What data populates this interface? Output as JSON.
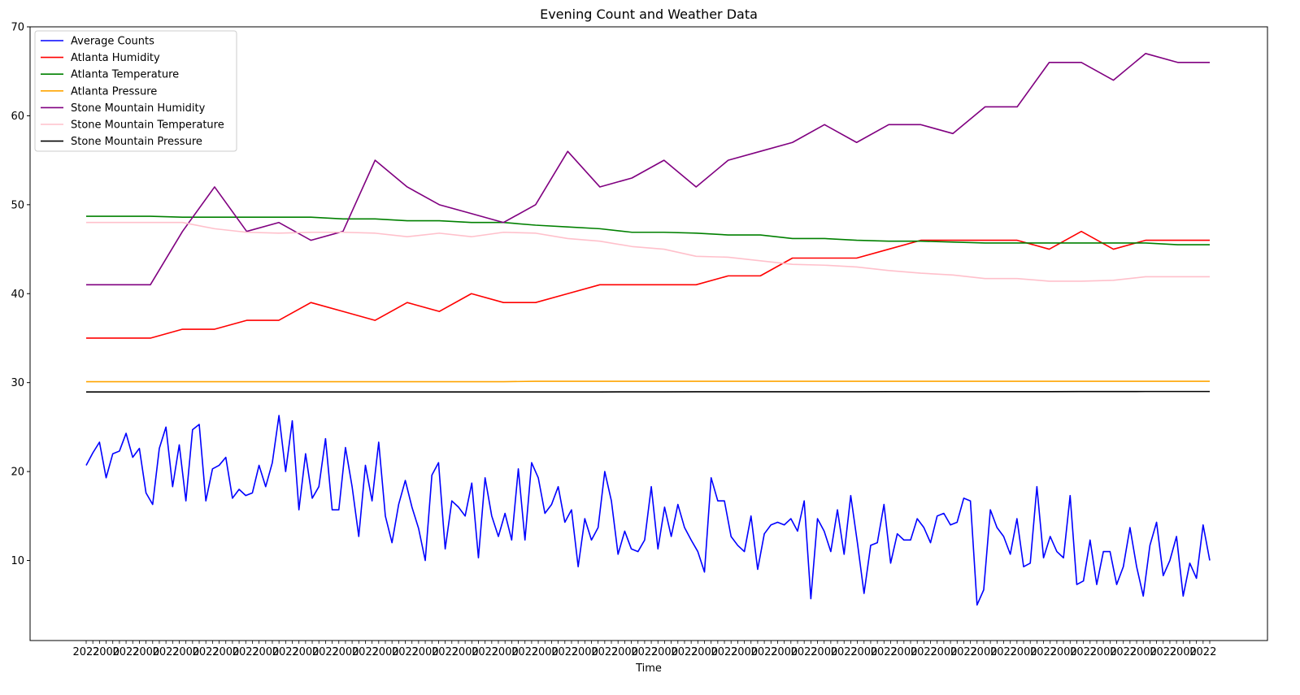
{
  "chart_data": {
    "type": "line",
    "title": "Evening Count and Weather Data",
    "xlabel": "Time",
    "ylabel": "",
    "ylim": [
      1,
      70
    ],
    "yticks": [
      10,
      20,
      30,
      40,
      50,
      60,
      70
    ],
    "grid": false,
    "legend_position": "top-left",
    "x_tick_labels_description": "dense overlapping timestamp labels",
    "x_tick_label_fragments": [
      "2022",
      "2000"
    ],
    "series": [
      {
        "name": "Average Counts",
        "color": "#0000ff",
        "values": [
          20.7,
          22.1,
          23.3,
          19.3,
          22.0,
          22.3,
          24.3,
          21.6,
          22.6,
          17.6,
          16.3,
          22.6,
          25.0,
          18.3,
          23.0,
          16.7,
          24.7,
          25.3,
          16.7,
          20.3,
          20.7,
          21.6,
          17.0,
          18.0,
          17.3,
          17.6,
          20.7,
          18.3,
          21.0,
          26.3,
          20.0,
          25.7,
          15.7,
          22.0,
          17.0,
          18.3,
          23.7,
          15.7,
          15.7,
          22.7,
          18.3,
          12.7,
          20.7,
          16.7,
          23.3,
          15.0,
          12.0,
          16.3,
          19.0,
          16.0,
          13.6,
          10.0,
          19.6,
          21.0,
          11.3,
          16.7,
          16.0,
          15.0,
          18.7,
          10.3,
          19.3,
          15.0,
          12.7,
          15.3,
          12.3,
          20.3,
          12.3,
          21.0,
          19.3,
          15.3,
          16.3,
          18.3,
          14.3,
          15.7,
          9.3,
          14.7,
          12.3,
          13.7,
          20.0,
          16.7,
          10.7,
          13.3,
          11.3,
          11.0,
          12.3,
          18.3,
          11.3,
          16.0,
          12.7,
          16.3,
          13.7,
          12.3,
          11.0,
          8.7,
          19.3,
          16.7,
          16.7,
          12.7,
          11.7,
          11.0,
          15.0,
          9.0,
          13.0,
          14.0,
          14.3,
          14.0,
          14.7,
          13.3,
          16.7,
          5.7,
          14.7,
          13.3,
          11.0,
          15.7,
          10.7,
          17.3,
          12.0,
          6.3,
          11.7,
          12.0,
          16.3,
          9.7,
          13.0,
          12.3,
          12.3,
          14.7,
          13.7,
          12.0,
          15.0,
          15.3,
          14.0,
          14.3,
          17.0,
          16.7,
          5.0,
          6.7,
          15.7,
          13.7,
          12.7,
          10.7,
          14.7,
          9.3,
          9.7,
          18.3,
          10.3,
          12.7,
          11.0,
          10.3,
          17.3,
          7.3,
          7.7,
          12.3,
          7.3,
          11.0,
          11.0,
          7.3,
          9.3,
          13.7,
          9.3,
          6.0,
          11.7,
          14.3,
          8.3,
          10.0,
          12.7,
          6.0,
          9.7,
          8.0,
          14.0,
          10.0
        ]
      },
      {
        "name": "Atlanta Humidity",
        "color": "#ff0000",
        "values": [
          35,
          35,
          35,
          36,
          36,
          37,
          37,
          39,
          38,
          37,
          39,
          38,
          40,
          39,
          39,
          40,
          41,
          41,
          41,
          41,
          42,
          42,
          44,
          44,
          44,
          45,
          46,
          46,
          46,
          46,
          45,
          47,
          45,
          46,
          46,
          46
        ]
      },
      {
        "name": "Atlanta Temperature",
        "color": "#008000",
        "values": [
          48.7,
          48.7,
          48.7,
          48.6,
          48.6,
          48.6,
          48.6,
          48.6,
          48.4,
          48.4,
          48.2,
          48.2,
          48.0,
          48.0,
          47.7,
          47.5,
          47.3,
          46.9,
          46.9,
          46.8,
          46.6,
          46.6,
          46.2,
          46.2,
          46.0,
          45.9,
          45.9,
          45.8,
          45.7,
          45.7,
          45.7,
          45.7,
          45.7,
          45.7,
          45.5,
          45.5
        ]
      },
      {
        "name": "Atlanta Pressure",
        "color": "#ffa500",
        "values": [
          30.1,
          30.1,
          30.1,
          30.1,
          30.1,
          30.1,
          30.1,
          30.1,
          30.1,
          30.1,
          30.1,
          30.1,
          30.1,
          30.1,
          30.15,
          30.15,
          30.15,
          30.15,
          30.15,
          30.15,
          30.15,
          30.15,
          30.15,
          30.15,
          30.15,
          30.15,
          30.15,
          30.15,
          30.15,
          30.15,
          30.15,
          30.15,
          30.15,
          30.15,
          30.15,
          30.15
        ]
      },
      {
        "name": "Stone Mountain Humidity",
        "color": "#800080",
        "values": [
          41,
          41,
          41,
          47,
          52,
          47,
          48,
          46,
          47,
          55,
          52,
          50,
          49,
          48,
          50,
          56,
          52,
          53,
          55,
          52,
          55,
          56,
          57,
          59,
          57,
          59,
          59,
          58,
          61,
          61,
          66,
          66,
          64,
          67,
          66,
          66
        ]
      },
      {
        "name": "Stone Mountain Temperature",
        "color": "#ffc0cb",
        "values": [
          48.0,
          48.0,
          48.0,
          48.0,
          47.3,
          46.9,
          46.8,
          46.9,
          46.9,
          46.8,
          46.4,
          46.8,
          46.4,
          46.9,
          46.8,
          46.2,
          45.9,
          45.3,
          45.0,
          44.2,
          44.1,
          43.7,
          43.3,
          43.2,
          43.0,
          42.6,
          42.3,
          42.1,
          41.7,
          41.7,
          41.4,
          41.4,
          41.5,
          41.9,
          41.9,
          41.9
        ]
      },
      {
        "name": "Stone Mountain Pressure",
        "color": "#000000",
        "values": [
          28.95,
          28.95,
          28.95,
          28.95,
          28.95,
          28.95,
          28.95,
          28.95,
          28.95,
          28.95,
          28.95,
          28.95,
          28.95,
          28.95,
          28.95,
          28.95,
          28.95,
          28.96,
          28.96,
          28.97,
          28.97,
          28.97,
          28.97,
          28.97,
          28.97,
          28.98,
          28.98,
          28.98,
          28.98,
          28.98,
          28.98,
          28.99,
          28.99,
          29.0,
          29.0,
          29.0
        ]
      }
    ]
  }
}
